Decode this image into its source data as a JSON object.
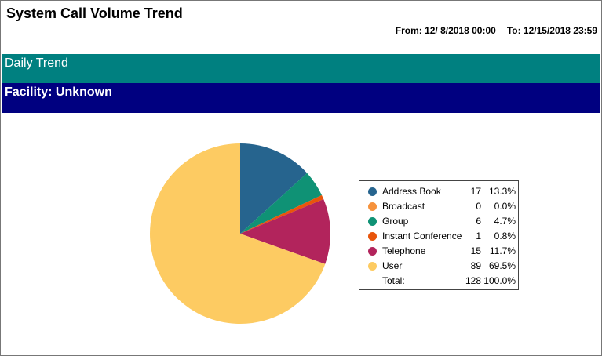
{
  "report": {
    "title": "System Call Volume Trend",
    "from_label": "From: 12/ 8/2018 00:00",
    "to_label": "To: 12/15/2018 23:59"
  },
  "bands": {
    "daily_trend": "Daily Trend",
    "facility": "Facility: Unknown"
  },
  "chart_data": {
    "type": "pie",
    "categories": [
      "Address Book",
      "Broadcast",
      "Group",
      "Instant Conference",
      "Telephone",
      "User"
    ],
    "values": [
      17,
      0,
      6,
      1,
      15,
      89
    ],
    "percents": [
      "13.3%",
      "0.0%",
      "4.7%",
      "0.8%",
      "11.7%",
      "69.5%"
    ],
    "colors": [
      "#26648e",
      "#f6923c",
      "#0f9275",
      "#e8550b",
      "#b2245c",
      "#fdcb62"
    ],
    "total_label": "Total:",
    "total_value": 128,
    "total_percent": "100.0%",
    "legend_position": "right"
  }
}
